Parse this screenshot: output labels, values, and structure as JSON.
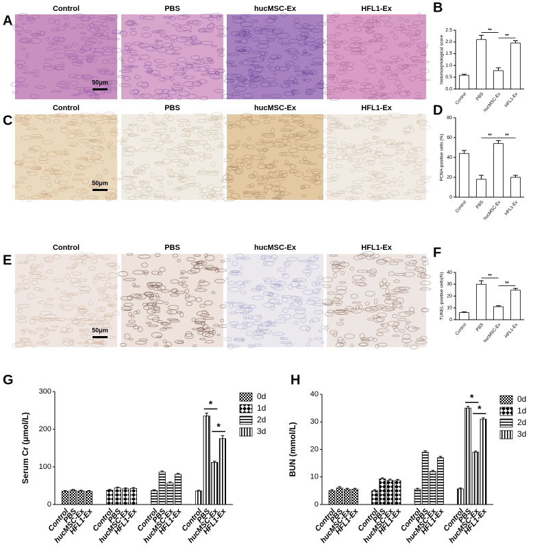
{
  "image_rows": [
    {
      "letter": "A",
      "labels": [
        "Control",
        "PBS",
        "hucMSC-Ex",
        "HFL1-Ex"
      ],
      "scale": "50μm"
    },
    {
      "letter": "C",
      "labels": [
        "Control",
        "PBS",
        "hucMSC-Ex",
        "HFL1-Ex"
      ],
      "scale": "50μm"
    },
    {
      "letter": "E",
      "labels": [
        "Control",
        "PBS",
        "hucMSC-Ex",
        "HFL1-Ex"
      ],
      "scale": "50μm"
    }
  ],
  "chart_data": [
    {
      "type": "bar",
      "letter": "B",
      "y_label": "histomorphological score",
      "categories": [
        "Control",
        "PBS",
        "hucMSC-Ex",
        "HFL1-Ex"
      ],
      "values": [
        0.58,
        2.1,
        0.78,
        1.95
      ],
      "errors": [
        0.05,
        0.18,
        0.12,
        0.1
      ],
      "ylim": [
        0,
        2.5
      ],
      "yticks": [
        {
          "value": 0,
          "label": "0.0"
        },
        0.5,
        {
          "value": 1,
          "label": "1.0"
        },
        1.5,
        {
          "value": 2,
          "label": "2.0"
        },
        2.5
      ],
      "annotations": [
        {
          "label": "**",
          "between": [
            "PBS",
            "hucMSC-Ex"
          ]
        },
        {
          "label": "**",
          "between": [
            "hucMSC-Ex",
            "HFL1-Ex"
          ]
        }
      ]
    },
    {
      "type": "bar",
      "letter": "D",
      "y_label": "PCNA-positive cells (%)",
      "categories": [
        "Control",
        "PBS",
        "hucMSC-Ex",
        "HFL1-Ex"
      ],
      "values": [
        44,
        18,
        54,
        20
      ],
      "errors": [
        3,
        4,
        3,
        2
      ],
      "ylim": [
        0,
        80
      ],
      "yticks": [
        0,
        20,
        40,
        60,
        80
      ],
      "annotations": [
        {
          "label": "**",
          "between": [
            "PBS",
            "hucMSC-Ex"
          ]
        },
        {
          "label": "**",
          "between": [
            "hucMSC-Ex",
            "HFL1-Ex"
          ]
        }
      ]
    },
    {
      "type": "bar",
      "letter": "F",
      "y_label": "TUNEL-positive cells(%)",
      "categories": [
        "Control",
        "PBS",
        "hucMSC-Ex",
        "HFL1-Ex"
      ],
      "values": [
        6,
        30,
        11,
        25
      ],
      "errors": [
        0.6,
        3,
        0.8,
        1.5
      ],
      "ylim": [
        0,
        40
      ],
      "yticks": [
        0,
        10,
        20,
        30,
        40
      ],
      "annotations": [
        {
          "label": "**",
          "between": [
            "PBS",
            "hucMSC-Ex"
          ]
        },
        {
          "label": "**",
          "between": [
            "hucMSC-Ex",
            "HFL1-Ex"
          ]
        }
      ]
    },
    {
      "type": "grouped_bar",
      "letter": "G",
      "y_label": "Serum Cr (μmol/L)",
      "categories": [
        "Control",
        "PBS",
        "hucMSC-Ex",
        "HFL1-Ex"
      ],
      "series": [
        {
          "name": "0d",
          "pattern": "checker",
          "values": [
            35,
            38,
            36,
            35
          ],
          "errors": [
            2,
            2,
            2,
            2
          ]
        },
        {
          "name": "1d",
          "pattern": "diamond",
          "values": [
            38,
            44,
            42,
            43
          ],
          "errors": [
            2,
            2,
            2,
            2
          ]
        },
        {
          "name": "2d",
          "pattern": "hstripe",
          "values": [
            37,
            86,
            57,
            80
          ],
          "errors": [
            2,
            3,
            3,
            3
          ]
        },
        {
          "name": "3d",
          "pattern": "vstripe",
          "values": [
            36,
            235,
            112,
            175
          ],
          "errors": [
            2,
            8,
            3,
            8
          ]
        }
      ],
      "ylim": [
        0,
        300
      ],
      "yticks": [
        0,
        100,
        200,
        300
      ],
      "annotations": [
        {
          "label": "*",
          "group": "3d",
          "between": [
            "PBS",
            "hucMSC-Ex"
          ]
        },
        {
          "label": "*",
          "group": "3d",
          "between": [
            "hucMSC-Ex",
            "HFL1-Ex"
          ]
        }
      ]
    },
    {
      "type": "grouped_bar",
      "letter": "H",
      "y_label": "BUN (mmol/L)",
      "categories": [
        "Control",
        "PBS",
        "hucMSC-Ex",
        "HFL1-Ex"
      ],
      "series": [
        {
          "name": "0d",
          "pattern": "checker",
          "values": [
            5,
            6,
            5.5,
            5.5
          ],
          "errors": [
            0.4,
            0.5,
            0.4,
            0.4
          ]
        },
        {
          "name": "1d",
          "pattern": "diamond",
          "values": [
            5,
            9.3,
            8.8,
            8.7
          ],
          "errors": [
            0.4,
            0.4,
            0.4,
            0.4
          ]
        },
        {
          "name": "2d",
          "pattern": "hstripe",
          "values": [
            5.5,
            19,
            12,
            17
          ],
          "errors": [
            0.4,
            0.5,
            0.4,
            0.5
          ]
        },
        {
          "name": "3d",
          "pattern": "vstripe",
          "values": [
            5.7,
            35,
            19,
            31
          ],
          "errors": [
            0.3,
            0.6,
            0.4,
            0.5
          ]
        }
      ],
      "ylim": [
        0,
        40
      ],
      "yticks": [
        0,
        10,
        20,
        30,
        40
      ],
      "annotations": [
        {
          "label": "*",
          "group": "3d",
          "between": [
            "PBS",
            "hucMSC-Ex"
          ]
        },
        {
          "label": "*",
          "group": "3d",
          "between": [
            "hucMSC-Ex",
            "HFL1-Ex"
          ]
        }
      ]
    }
  ]
}
